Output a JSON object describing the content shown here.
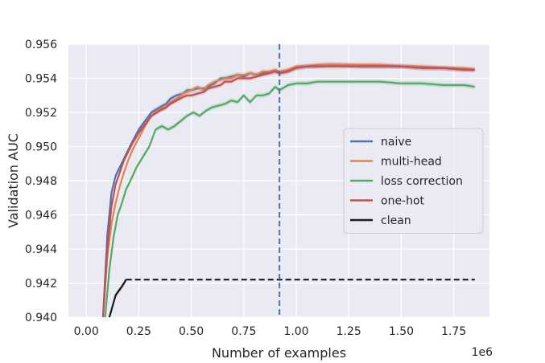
{
  "chart_data": {
    "type": "line",
    "xlabel": "Number of examples",
    "ylabel": "Validation AUC",
    "x_offset_label": "1e6",
    "xlim": [
      -0.085,
      1.92
    ],
    "ylim": [
      0.94,
      0.956
    ],
    "x_ticks": [
      0.0,
      0.25,
      0.5,
      0.75,
      1.0,
      1.25,
      1.5,
      1.75
    ],
    "x_tick_labels": [
      "0.00",
      "0.25",
      "0.50",
      "0.75",
      "1.00",
      "1.25",
      "1.50",
      "1.75"
    ],
    "y_ticks": [
      0.94,
      0.942,
      0.944,
      0.946,
      0.948,
      0.95,
      0.952,
      0.954,
      0.956
    ],
    "y_tick_labels": [
      "0.940",
      "0.942",
      "0.944",
      "0.946",
      "0.948",
      "0.950",
      "0.952",
      "0.954",
      "0.956"
    ],
    "grid": true,
    "legend_position": "center-right",
    "vline": {
      "x": 0.92,
      "color": "#4c72b0",
      "style": "dashed"
    },
    "series": [
      {
        "name": "naive",
        "color": "#4c72b0",
        "x": [
          0.08,
          0.1,
          0.12,
          0.14,
          0.16,
          0.18,
          0.2,
          0.22,
          0.25,
          0.28,
          0.31,
          0.35,
          0.38,
          0.4,
          0.43,
          0.46,
          0.48,
          0.5,
          0.53,
          0.56,
          0.58,
          0.61,
          0.64,
          0.66,
          0.69,
          0.72,
          0.75,
          0.78,
          0.81,
          0.84,
          0.87,
          0.9,
          0.92,
          0.96,
          1.0,
          1.05,
          1.1,
          1.15,
          1.2,
          1.3,
          1.4,
          1.5,
          1.6,
          1.7,
          1.8,
          1.85
        ],
        "y": [
          0.94,
          0.9448,
          0.9473,
          0.9483,
          0.9488,
          0.9493,
          0.9498,
          0.9503,
          0.951,
          0.9515,
          0.952,
          0.9523,
          0.9525,
          0.9528,
          0.953,
          0.9531,
          0.9533,
          0.9533,
          0.9534,
          0.9534,
          0.9535,
          0.9537,
          0.954,
          0.954,
          0.9541,
          0.9542,
          0.9541,
          0.9543,
          0.9542,
          0.9543,
          0.9543,
          0.9544,
          0.9543,
          0.9544,
          0.9546,
          0.9547,
          0.9547,
          0.9548,
          0.9548,
          0.9547,
          0.9547,
          0.9547,
          0.9546,
          0.9546,
          0.9545,
          0.9545
        ]
      },
      {
        "name": "multi-head",
        "color": "#dd8452",
        "x": [
          0.08,
          0.1,
          0.12,
          0.14,
          0.16,
          0.18,
          0.2,
          0.22,
          0.25,
          0.28,
          0.31,
          0.35,
          0.38,
          0.4,
          0.43,
          0.46,
          0.48,
          0.5,
          0.53,
          0.56,
          0.58,
          0.61,
          0.64,
          0.66,
          0.69,
          0.72,
          0.75,
          0.78,
          0.81,
          0.84,
          0.87,
          0.9,
          0.92,
          0.96,
          1.0,
          1.05,
          1.1,
          1.15,
          1.2,
          1.3,
          1.4,
          1.5,
          1.6,
          1.7,
          1.8,
          1.85
        ],
        "y": [
          0.94,
          0.9435,
          0.9455,
          0.9467,
          0.9477,
          0.9485,
          0.9492,
          0.9498,
          0.9505,
          0.9512,
          0.9518,
          0.9522,
          0.9523,
          0.9526,
          0.9528,
          0.9531,
          0.9532,
          0.9533,
          0.9535,
          0.9533,
          0.9536,
          0.9538,
          0.9539,
          0.954,
          0.954,
          0.9542,
          0.9542,
          0.9543,
          0.9542,
          0.9544,
          0.9544,
          0.9545,
          0.9544,
          0.9545,
          0.9547,
          0.9547,
          0.9548,
          0.9548,
          0.9548,
          0.9548,
          0.9548,
          0.9547,
          0.9547,
          0.9546,
          0.9546,
          0.9545
        ]
      },
      {
        "name": "loss correction",
        "color": "#55a868",
        "x": [
          0.09,
          0.11,
          0.13,
          0.15,
          0.17,
          0.19,
          0.21,
          0.24,
          0.27,
          0.3,
          0.33,
          0.36,
          0.39,
          0.42,
          0.45,
          0.48,
          0.51,
          0.54,
          0.57,
          0.6,
          0.63,
          0.66,
          0.69,
          0.72,
          0.75,
          0.78,
          0.81,
          0.84,
          0.87,
          0.9,
          0.92,
          0.96,
          1.0,
          1.05,
          1.1,
          1.15,
          1.2,
          1.3,
          1.35,
          1.4,
          1.5,
          1.6,
          1.7,
          1.75,
          1.8,
          1.85
        ],
        "y": [
          0.94,
          0.9428,
          0.9447,
          0.946,
          0.9467,
          0.9475,
          0.948,
          0.9488,
          0.9494,
          0.95,
          0.951,
          0.9512,
          0.951,
          0.9512,
          0.9515,
          0.9518,
          0.952,
          0.9518,
          0.9521,
          0.9523,
          0.9524,
          0.9525,
          0.9527,
          0.9526,
          0.953,
          0.9526,
          0.953,
          0.953,
          0.9531,
          0.9535,
          0.9533,
          0.9536,
          0.9537,
          0.9537,
          0.9538,
          0.9538,
          0.9538,
          0.9538,
          0.9538,
          0.9538,
          0.9537,
          0.9537,
          0.9536,
          0.9536,
          0.9536,
          0.9535
        ]
      },
      {
        "name": "one-hot",
        "color": "#c44e52",
        "x": [
          0.08,
          0.1,
          0.12,
          0.14,
          0.16,
          0.18,
          0.2,
          0.22,
          0.25,
          0.28,
          0.31,
          0.35,
          0.38,
          0.4,
          0.43,
          0.46,
          0.48,
          0.5,
          0.53,
          0.56,
          0.58,
          0.61,
          0.64,
          0.66,
          0.69,
          0.72,
          0.75,
          0.78,
          0.81,
          0.84,
          0.87,
          0.9,
          0.92,
          0.96,
          1.0,
          1.05,
          1.1,
          1.15,
          1.2,
          1.3,
          1.4,
          1.5,
          1.6,
          1.7,
          1.8,
          1.85
        ],
        "y": [
          0.94,
          0.944,
          0.9465,
          0.9478,
          0.9485,
          0.9492,
          0.9497,
          0.9502,
          0.9508,
          0.9513,
          0.9518,
          0.9521,
          0.9523,
          0.9525,
          0.9527,
          0.9529,
          0.953,
          0.953,
          0.9531,
          0.9532,
          0.9534,
          0.9535,
          0.9536,
          0.9538,
          0.9538,
          0.954,
          0.954,
          0.954,
          0.9541,
          0.9542,
          0.9543,
          0.9544,
          0.9543,
          0.9544,
          0.9546,
          0.9547,
          0.9547,
          0.9547,
          0.9547,
          0.9547,
          0.9547,
          0.9547,
          0.9546,
          0.9546,
          0.9545,
          0.9545
        ]
      },
      {
        "name": "clean",
        "color": "#1a1a1a",
        "x": [
          0.11,
          0.14,
          0.17,
          0.19
        ],
        "y": [
          0.94,
          0.9413,
          0.9418,
          0.9422
        ]
      },
      {
        "name": "",
        "color": "#1a1a1a",
        "style": "dashed",
        "x": [
          0.19,
          1.85
        ],
        "y": [
          0.9422,
          0.9422
        ]
      }
    ]
  }
}
